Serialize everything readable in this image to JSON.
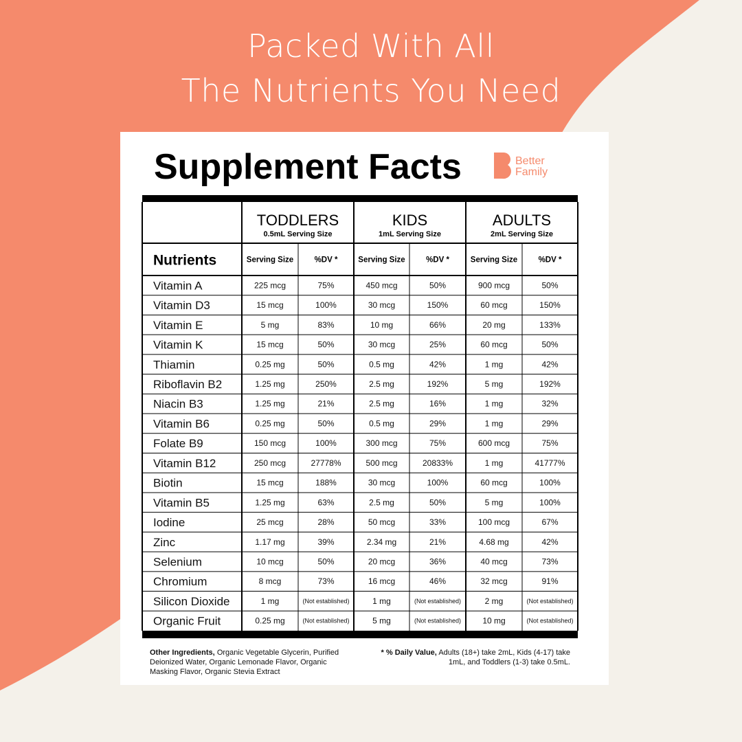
{
  "header": {
    "lines": [
      "Packed With All",
      "The Nutrients You Need"
    ]
  },
  "card": {
    "title": "Supplement Facts",
    "brand": [
      "Better",
      "Family"
    ]
  },
  "table": {
    "groups": [
      {
        "name": "TODDLERS",
        "serving": "0.5mL Serving Size"
      },
      {
        "name": "KIDS",
        "serving": "1mL Serving Size"
      },
      {
        "name": "ADULTS",
        "serving": "2mL Serving Size"
      }
    ],
    "nutrients_header": "Nutrients",
    "subheaders": [
      "Serving Size",
      "%DV *",
      "Serving Size",
      "%DV *",
      "Serving Size",
      "%DV *"
    ],
    "rows": [
      [
        "Vitamin A",
        "225 mcg",
        "75%",
        "450 mcg",
        "50%",
        "900 mcg",
        "50%"
      ],
      [
        "Vitamin D3",
        "15 mcg",
        "100%",
        "30 mcg",
        "150%",
        "60 mcg",
        "150%"
      ],
      [
        "Vitamin E",
        "5 mg",
        "83%",
        "10 mg",
        "66%",
        "20 mg",
        "133%"
      ],
      [
        "Vitamin K",
        "15 mcg",
        "50%",
        "30 mcg",
        "25%",
        "60 mcg",
        "50%"
      ],
      [
        "Thiamin",
        "0.25 mg",
        "50%",
        "0.5 mg",
        "42%",
        "1 mg",
        "42%"
      ],
      [
        "Riboflavin B2",
        "1.25 mg",
        "250%",
        "2.5 mg",
        "192%",
        "5 mg",
        "192%"
      ],
      [
        "Niacin B3",
        "1.25 mg",
        "21%",
        "2.5 mg",
        "16%",
        "1 mg",
        "32%"
      ],
      [
        "Vitamin B6",
        "0.25 mg",
        "50%",
        "0.5 mg",
        "29%",
        "1 mg",
        "29%"
      ],
      [
        "Folate B9",
        "150 mcg",
        "100%",
        "300 mcg",
        "75%",
        "600 mcg",
        "75%"
      ],
      [
        "Vitamin B12",
        "250 mcg",
        "27778%",
        "500 mcg",
        "20833%",
        "1 mg",
        "41777%"
      ],
      [
        "Biotin",
        "15 mcg",
        "188%",
        "30 mcg",
        "100%",
        "60 mcg",
        "100%"
      ],
      [
        "Vitamin B5",
        "1.25 mg",
        "63%",
        "2.5 mg",
        "50%",
        "5 mg",
        "100%"
      ],
      [
        "Iodine",
        "25 mcg",
        "28%",
        "50 mcg",
        "33%",
        "100 mcg",
        "67%"
      ],
      [
        "Zinc",
        "1.17 mg",
        "39%",
        "2.34 mg",
        "21%",
        "4.68 mg",
        "42%"
      ],
      [
        "Selenium",
        "10 mcg",
        "50%",
        "20 mcg",
        "36%",
        "40 mcg",
        "73%"
      ],
      [
        "Chromium",
        "8 mcg",
        "73%",
        "16 mcg",
        "46%",
        "32 mcg",
        "91%"
      ],
      [
        "Silicon Dioxide",
        "1 mg",
        "(Not established)",
        "1 mg",
        "(Not established)",
        "2 mg",
        "(Not established)"
      ],
      [
        "Organic Fruit",
        "0.25 mg",
        "(Not established)",
        "5 mg",
        "(Not established)",
        "10 mg",
        "(Not established)"
      ]
    ]
  },
  "footer": {
    "left": {
      "bold": "Other Ingredients,",
      "text": "Organic Vegetable Glycerin, Purified Deionized Water, Organic Lemonade Flavor, Organic Masking Flavor, Organic Stevia Extract"
    },
    "right": {
      "bold": "* % Daily Value,",
      "text": "Adults (18+) take 2mL, Kids (4-17) take 1mL, and Toddlers (1-3) take 0.5mL."
    }
  }
}
